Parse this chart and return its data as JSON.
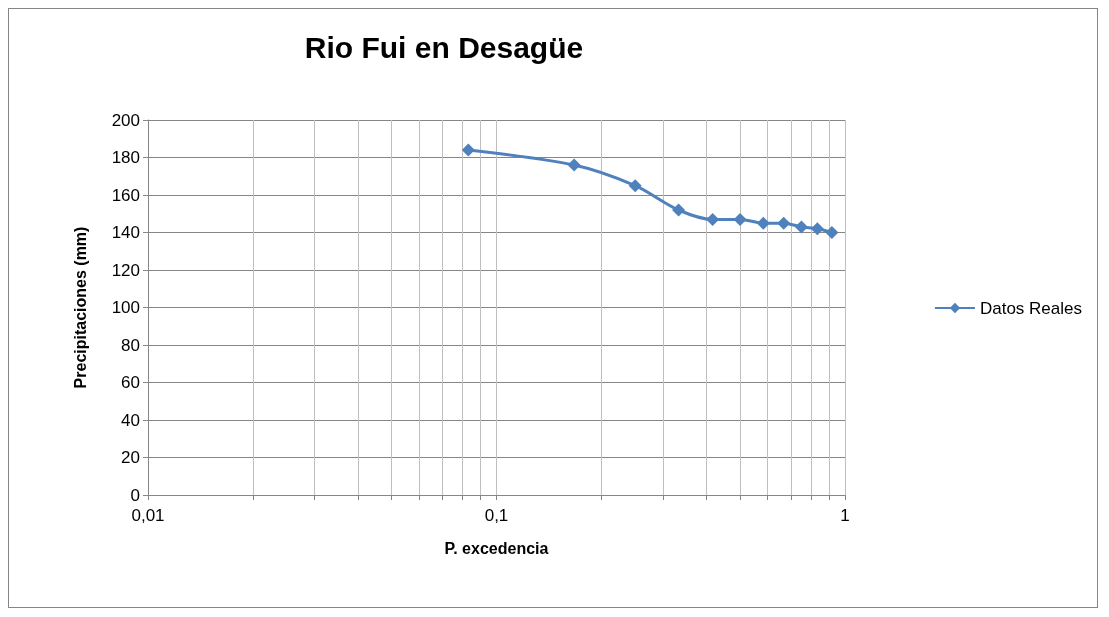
{
  "chart_data": {
    "type": "line",
    "title": "Rio Fui en Desagüe",
    "xlabel": "P. excedencia",
    "ylabel": "Precipitaciones (mm)",
    "x": [
      0.083,
      0.167,
      0.25,
      0.333,
      0.417,
      0.5,
      0.583,
      0.667,
      0.75,
      0.833,
      0.917
    ],
    "series": [
      {
        "name": "Datos Reales",
        "color": "#4f81bd",
        "values": [
          184,
          176,
          165,
          152,
          147,
          147,
          145,
          145,
          143,
          142,
          140
        ]
      }
    ],
    "log": "x",
    "xlim": [
      0.01,
      1
    ],
    "xticks": [
      {
        "value": 0.01,
        "label": "0,01"
      },
      {
        "value": 0.02,
        "label": null
      },
      {
        "value": 0.03,
        "label": null
      },
      {
        "value": 0.04,
        "label": null
      },
      {
        "value": 0.05,
        "label": null
      },
      {
        "value": 0.06,
        "label": null
      },
      {
        "value": 0.07,
        "label": null
      },
      {
        "value": 0.08,
        "label": null
      },
      {
        "value": 0.09,
        "label": null
      },
      {
        "value": 0.1,
        "label": "0,1"
      },
      {
        "value": 0.2,
        "label": null
      },
      {
        "value": 0.3,
        "label": null
      },
      {
        "value": 0.4,
        "label": null
      },
      {
        "value": 0.5,
        "label": null
      },
      {
        "value": 0.6,
        "label": null
      },
      {
        "value": 0.7,
        "label": null
      },
      {
        "value": 0.8,
        "label": null
      },
      {
        "value": 0.9,
        "label": null
      },
      {
        "value": 1,
        "label": "1"
      }
    ],
    "ylim": [
      0,
      200
    ],
    "yticks": [
      0,
      20,
      40,
      60,
      80,
      100,
      120,
      140,
      160,
      180,
      200
    ],
    "grid": true,
    "legend": "right",
    "marker": "diamond",
    "line_style": "solid"
  }
}
